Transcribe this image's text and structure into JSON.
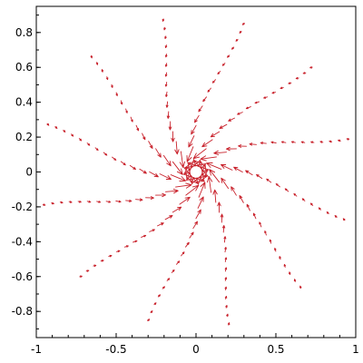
{
  "chart_data": {
    "type": "vector field",
    "title": "",
    "xlabel": "",
    "ylabel": "",
    "xlim": [
      -1,
      1
    ],
    "ylim": [
      -0.95,
      0.95
    ],
    "grid": false,
    "x_ticks": [
      {
        "value": -1,
        "label": "-1"
      },
      {
        "value": -0.5,
        "label": "-0.5"
      },
      {
        "value": 0,
        "label": "0"
      },
      {
        "value": 0.5,
        "label": "0.5"
      },
      {
        "value": 1,
        "label": "1"
      }
    ],
    "y_ticks": [
      {
        "value": 0.8,
        "label": "0.8"
      },
      {
        "value": 0.6,
        "label": "0.6"
      },
      {
        "value": 0.4,
        "label": "0.4"
      },
      {
        "value": 0.2,
        "label": "0.2"
      },
      {
        "value": 0,
        "label": "0"
      },
      {
        "value": -0.2,
        "label": "-0.2"
      },
      {
        "value": -0.4,
        "label": "-0.4"
      },
      {
        "value": -0.6,
        "label": "-0.6"
      },
      {
        "value": -0.8,
        "label": "-0.8"
      }
    ],
    "arrow_color": "#c8202a",
    "field": {
      "rays": 12,
      "points_per_ray": 16,
      "r_min": 0.08,
      "r_max": 0.98,
      "ray_angle_offset_deg": 12,
      "spiral_twist_deg": 28,
      "description": "radial spokes of arrows; largest near origin pointing inward/rotating, magnitude decreasing outward"
    }
  }
}
